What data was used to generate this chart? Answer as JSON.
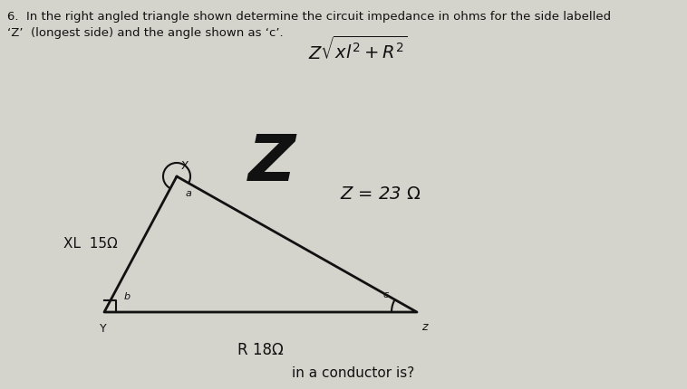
{
  "title_line1": "6.  In the right angled triangle shown determine the circuit impedance in ohms for the side labelled",
  "title_line2": "‘Z’  (longest side) and the angle shown as ‘c’.",
  "background_color": "#d4d4cc",
  "triangle": {
    "X": [
      0.195,
      0.75
    ],
    "Y": [
      0.115,
      0.18
    ],
    "Zpt": [
      0.46,
      0.18
    ]
  },
  "side_label_XL": "XL  15Ω",
  "side_label_R": "R 18Ω",
  "big_Z_label": "Z",
  "answer_text": "Z = 23 Ω",
  "bottom_text": "conductor is?",
  "text_color": "#111111",
  "triangle_color": "#111111",
  "line_width": 2.0,
  "figsize": [
    7.58,
    4.3
  ],
  "dpi": 100
}
